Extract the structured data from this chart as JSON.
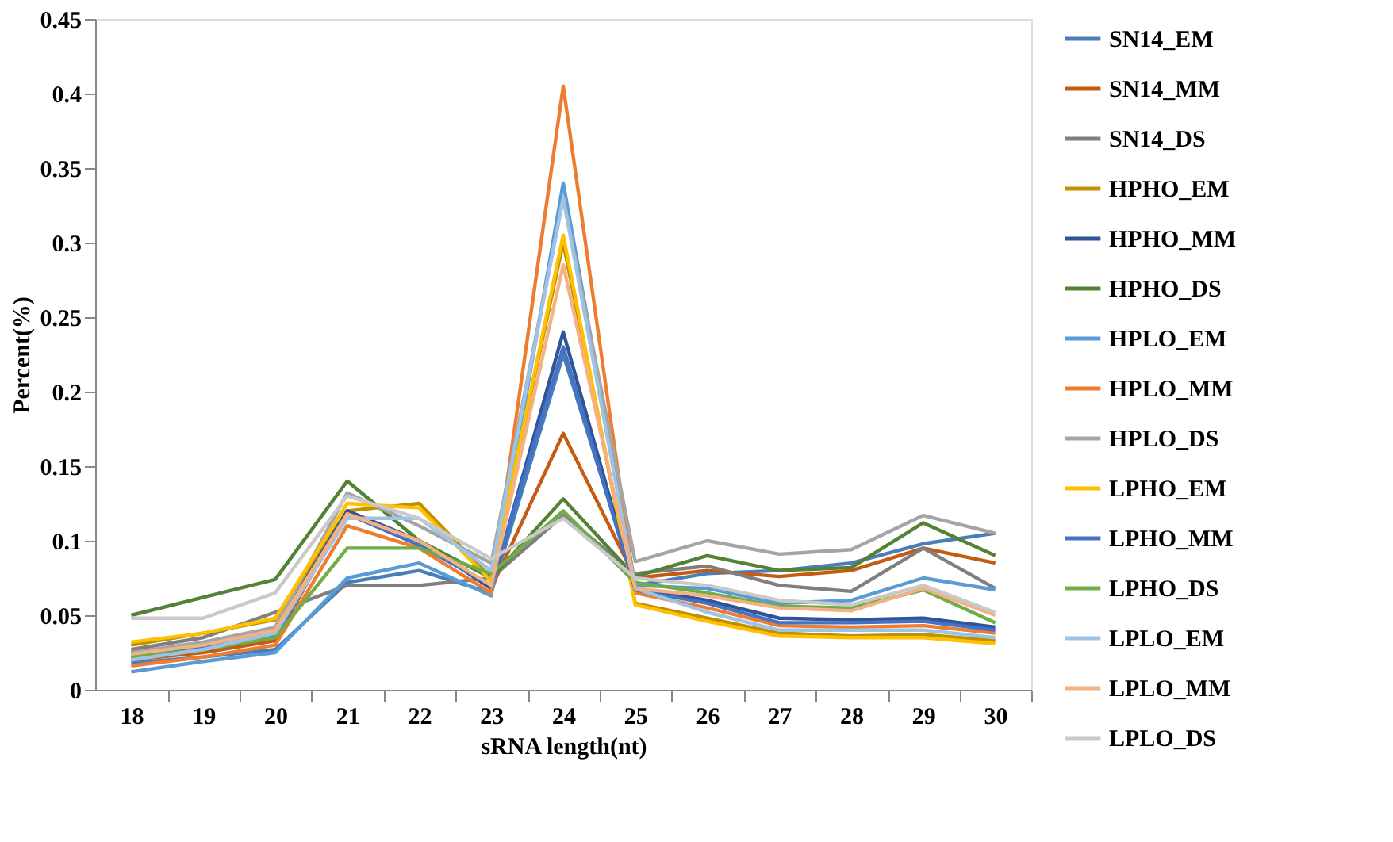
{
  "chart_data": {
    "type": "line",
    "xlabel": "sRNA length(nt)",
    "ylabel": "Percent(%)",
    "categories": [
      "18",
      "19",
      "20",
      "21",
      "22",
      "23",
      "24",
      "25",
      "26",
      "27",
      "28",
      "29",
      "30"
    ],
    "ylim": [
      0,
      0.45
    ],
    "yticks": [
      {
        "value": 0,
        "label": "0"
      },
      0.05,
      {
        "value": 0.1,
        "label": "0.1"
      },
      0.15,
      {
        "value": 0.2,
        "label": "0.2"
      },
      0.25,
      {
        "value": 0.3,
        "label": "0.3"
      },
      0.35,
      {
        "value": 0.4,
        "label": "0.4"
      },
      0.45
    ],
    "grid": false,
    "legend": "right",
    "marker": "none",
    "line_style": "solid",
    "series": [
      {
        "name": "SN14_EM",
        "color": "#4a7ebb",
        "values": [
          0.018,
          0.022,
          0.027,
          0.072,
          0.08,
          0.065,
          0.225,
          0.07,
          0.078,
          0.08,
          0.085,
          0.098,
          0.105
        ]
      },
      {
        "name": "SN14_MM",
        "color": "#c55a11",
        "values": [
          0.02,
          0.025,
          0.033,
          0.12,
          0.1,
          0.068,
          0.172,
          0.075,
          0.08,
          0.076,
          0.08,
          0.095,
          0.085
        ]
      },
      {
        "name": "SN14_DS",
        "color": "#7f7f7f",
        "values": [
          0.027,
          0.035,
          0.052,
          0.07,
          0.07,
          0.075,
          0.117,
          0.078,
          0.083,
          0.07,
          0.066,
          0.095,
          0.068
        ]
      },
      {
        "name": "HPHO_EM",
        "color": "#bf9000",
        "values": [
          0.03,
          0.038,
          0.047,
          0.12,
          0.125,
          0.075,
          0.3,
          0.058,
          0.048,
          0.038,
          0.036,
          0.037,
          0.033
        ]
      },
      {
        "name": "HPHO_MM",
        "color": "#2f5597",
        "values": [
          0.025,
          0.03,
          0.04,
          0.12,
          0.1,
          0.068,
          0.24,
          0.068,
          0.06,
          0.048,
          0.047,
          0.048,
          0.042
        ]
      },
      {
        "name": "HPHO_DS",
        "color": "#548235",
        "values": [
          0.05,
          0.062,
          0.074,
          0.14,
          0.1,
          0.075,
          0.128,
          0.076,
          0.09,
          0.08,
          0.082,
          0.112,
          0.09
        ]
      },
      {
        "name": "HPLO_EM",
        "color": "#5b9bd5",
        "values": [
          0.012,
          0.019,
          0.025,
          0.075,
          0.085,
          0.063,
          0.34,
          0.07,
          0.068,
          0.058,
          0.06,
          0.075,
          0.067
        ]
      },
      {
        "name": "HPLO_MM",
        "color": "#ed7d31",
        "values": [
          0.016,
          0.022,
          0.03,
          0.11,
          0.095,
          0.065,
          0.405,
          0.065,
          0.055,
          0.043,
          0.042,
          0.043,
          0.038
        ]
      },
      {
        "name": "HPLO_DS",
        "color": "#a5a5a5",
        "values": [
          0.025,
          0.032,
          0.042,
          0.132,
          0.11,
          0.085,
          0.33,
          0.086,
          0.1,
          0.091,
          0.094,
          0.117,
          0.105
        ]
      },
      {
        "name": "LPHO_EM",
        "color": "#ffc000",
        "values": [
          0.032,
          0.038,
          0.048,
          0.125,
          0.122,
          0.073,
          0.305,
          0.057,
          0.046,
          0.036,
          0.035,
          0.035,
          0.031
        ]
      },
      {
        "name": "LPHO_MM",
        "color": "#4472c4",
        "values": [
          0.022,
          0.028,
          0.036,
          0.118,
          0.097,
          0.07,
          0.23,
          0.067,
          0.058,
          0.045,
          0.045,
          0.046,
          0.04
        ]
      },
      {
        "name": "LPHO_DS",
        "color": "#70ad47",
        "values": [
          0.022,
          0.027,
          0.035,
          0.095,
          0.095,
          0.078,
          0.12,
          0.072,
          0.065,
          0.056,
          0.055,
          0.067,
          0.045
        ]
      },
      {
        "name": "LPLO_EM",
        "color": "#9dc3e6",
        "values": [
          0.02,
          0.027,
          0.038,
          0.115,
          0.115,
          0.08,
          0.33,
          0.068,
          0.052,
          0.04,
          0.04,
          0.04,
          0.035
        ]
      },
      {
        "name": "LPLO_MM",
        "color": "#f4b183",
        "values": [
          0.024,
          0.03,
          0.04,
          0.118,
          0.1,
          0.07,
          0.285,
          0.068,
          0.063,
          0.055,
          0.053,
          0.068,
          0.05
        ]
      },
      {
        "name": "LPLO_DS",
        "color": "#c9c9c9",
        "values": [
          0.048,
          0.048,
          0.065,
          0.13,
          0.115,
          0.088,
          0.115,
          0.075,
          0.07,
          0.06,
          0.057,
          0.07,
          0.052
        ]
      }
    ]
  }
}
